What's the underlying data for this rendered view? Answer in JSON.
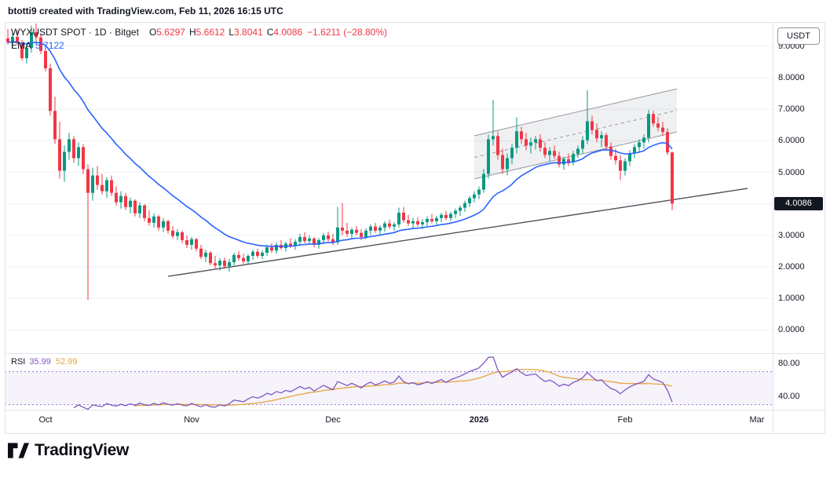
{
  "header": {
    "credit": "btotti9 created with TradingView.com, Feb 11, 2026 16:15 UTC"
  },
  "legend": {
    "symbol_title": "WYXUSDT SPOT · 1D · Bitget",
    "ohlc": {
      "o_label": "O",
      "o_value": "5.6297",
      "h_label": "H",
      "h_value": "5.6612",
      "l_label": "L",
      "l_value": "3.8041",
      "c_label": "C",
      "c_value": "4.0086",
      "change": "−1.6211 (−28.80%)"
    },
    "ema": {
      "label": "EMA",
      "value": "5.7122"
    }
  },
  "price_axis": {
    "currency_button": "USDT",
    "ticks": [
      "9.0000",
      "8.0000",
      "7.0000",
      "6.0000",
      "5.0000",
      "4.0000",
      "3.0000",
      "2.0000",
      "1.0000",
      "0.0000"
    ],
    "last_price_label": "4.0086"
  },
  "rsi_pane": {
    "label": "RSI",
    "rsi_value": "35.99",
    "ma_value": "52.99",
    "axis_ticks": [
      {
        "text": "80.00",
        "value": 80
      },
      {
        "text": "40.00",
        "value": 40
      }
    ]
  },
  "time_axis": {
    "labels": [
      {
        "text": "Oct",
        "index": 8,
        "emphasis": false
      },
      {
        "text": "Nov",
        "index": 39,
        "emphasis": false
      },
      {
        "text": "Dec",
        "index": 69,
        "emphasis": false
      },
      {
        "text": "2026",
        "index": 100,
        "emphasis": true
      },
      {
        "text": "Feb",
        "index": 131,
        "emphasis": false
      },
      {
        "text": "Mar",
        "index": 159,
        "emphasis": false
      }
    ]
  },
  "footer": {
    "logo_text": "TradingView"
  },
  "colors": {
    "up": "#089981",
    "down": "#f23645",
    "ema": "#2962ff",
    "rsi": "#7e57c2",
    "rsi_ma": "#e8a33d",
    "rsi_band_line": "#9b7dd4",
    "rsi_band_fill": "rgba(126,87,194,0.07)",
    "trendline": "#50535e",
    "channel_line": "#9598a1",
    "channel_fill": "rgba(149,152,161,0.15)",
    "grid": "#eef0f4",
    "badge_bg": "#131722"
  },
  "chart_data": {
    "type": "candlestick",
    "symbol": "WYXUSDT",
    "exchange": "Bitget",
    "interval": "1D",
    "ylim": [
      0,
      9.75
    ],
    "y_tick_step": 1.0,
    "candles_ohlc": [
      [
        9.25,
        9.55,
        9.05,
        9.12
      ],
      [
        9.12,
        9.42,
        8.95,
        9.3
      ],
      [
        9.3,
        9.52,
        9.05,
        9.1
      ],
      [
        9.1,
        9.2,
        8.55,
        8.62
      ],
      [
        8.62,
        9.05,
        8.45,
        8.95
      ],
      [
        8.95,
        9.65,
        8.8,
        9.45
      ],
      [
        9.45,
        9.72,
        9.15,
        9.28
      ],
      [
        9.28,
        9.4,
        8.75,
        8.85
      ],
      [
        8.85,
        8.95,
        8.2,
        8.3
      ],
      [
        8.3,
        8.45,
        6.8,
        6.95
      ],
      [
        6.95,
        7.4,
        5.9,
        6.05
      ],
      [
        6.05,
        6.6,
        4.8,
        5.05
      ],
      [
        5.05,
        5.85,
        4.7,
        5.65
      ],
      [
        5.65,
        6.25,
        5.4,
        6.05
      ],
      [
        6.05,
        6.15,
        5.3,
        5.45
      ],
      [
        5.45,
        5.95,
        5.2,
        5.8
      ],
      [
        5.8,
        5.9,
        4.95,
        5.1
      ],
      [
        5.1,
        5.25,
        0.95,
        4.35
      ],
      [
        4.35,
        5.15,
        4.1,
        4.9
      ],
      [
        4.9,
        5.2,
        4.45,
        4.6
      ],
      [
        4.6,
        4.95,
        4.3,
        4.4
      ],
      [
        4.4,
        4.85,
        4.2,
        4.75
      ],
      [
        4.75,
        4.9,
        4.25,
        4.35
      ],
      [
        4.35,
        4.55,
        3.95,
        4.05
      ],
      [
        4.05,
        4.4,
        3.85,
        4.25
      ],
      [
        4.25,
        4.35,
        3.8,
        3.9
      ],
      [
        3.9,
        4.2,
        3.7,
        4.1
      ],
      [
        4.1,
        4.15,
        3.6,
        3.7
      ],
      [
        3.7,
        4.05,
        3.55,
        3.95
      ],
      [
        3.95,
        4.0,
        3.45,
        3.55
      ],
      [
        3.55,
        3.8,
        3.3,
        3.4
      ],
      [
        3.4,
        3.7,
        3.25,
        3.6
      ],
      [
        3.6,
        3.65,
        3.15,
        3.25
      ],
      [
        3.25,
        3.55,
        3.1,
        3.45
      ],
      [
        3.45,
        3.5,
        3.05,
        3.15
      ],
      [
        3.15,
        3.3,
        2.9,
        2.98
      ],
      [
        2.98,
        3.2,
        2.85,
        3.1
      ],
      [
        3.1,
        3.15,
        2.75,
        2.85
      ],
      [
        2.85,
        3.0,
        2.6,
        2.7
      ],
      [
        2.7,
        2.95,
        2.55,
        2.88
      ],
      [
        2.88,
        2.92,
        2.5,
        2.58
      ],
      [
        2.58,
        2.7,
        2.25,
        2.32
      ],
      [
        2.32,
        2.55,
        2.15,
        2.45
      ],
      [
        2.45,
        2.5,
        2.05,
        2.12
      ],
      [
        2.12,
        2.35,
        1.95,
        2.05
      ],
      [
        2.05,
        2.28,
        1.88,
        2.2
      ],
      [
        2.2,
        2.3,
        1.95,
        2.02
      ],
      [
        2.02,
        2.25,
        1.85,
        2.15
      ],
      [
        2.15,
        2.45,
        2.05,
        2.38
      ],
      [
        2.38,
        2.5,
        2.2,
        2.28
      ],
      [
        2.28,
        2.42,
        2.1,
        2.18
      ],
      [
        2.18,
        2.4,
        2.08,
        2.35
      ],
      [
        2.35,
        2.55,
        2.22,
        2.48
      ],
      [
        2.48,
        2.58,
        2.28,
        2.35
      ],
      [
        2.35,
        2.52,
        2.25,
        2.45
      ],
      [
        2.45,
        2.7,
        2.35,
        2.62
      ],
      [
        2.62,
        2.75,
        2.45,
        2.52
      ],
      [
        2.52,
        2.78,
        2.42,
        2.7
      ],
      [
        2.7,
        2.85,
        2.55,
        2.6
      ],
      [
        2.6,
        2.8,
        2.48,
        2.74
      ],
      [
        2.74,
        2.9,
        2.6,
        2.66
      ],
      [
        2.66,
        2.88,
        2.55,
        2.8
      ],
      [
        2.8,
        3.05,
        2.68,
        2.95
      ],
      [
        2.95,
        3.1,
        2.75,
        2.82
      ],
      [
        2.82,
        3.0,
        2.7,
        2.9
      ],
      [
        2.9,
        2.95,
        2.62,
        2.7
      ],
      [
        2.7,
        2.92,
        2.58,
        2.85
      ],
      [
        2.85,
        3.08,
        2.72,
        3.0
      ],
      [
        3.0,
        3.12,
        2.8,
        2.88
      ],
      [
        2.88,
        3.05,
        2.7,
        2.78
      ],
      [
        2.78,
        3.9,
        2.7,
        3.25
      ],
      [
        3.25,
        4.02,
        3.0,
        3.15
      ],
      [
        3.15,
        3.4,
        2.95,
        3.05
      ],
      [
        3.05,
        3.25,
        2.9,
        3.18
      ],
      [
        3.18,
        3.3,
        3.0,
        3.08
      ],
      [
        3.08,
        3.2,
        2.85,
        2.95
      ],
      [
        2.95,
        3.22,
        2.88,
        3.15
      ],
      [
        3.15,
        3.35,
        3.02,
        3.28
      ],
      [
        3.28,
        3.4,
        3.08,
        3.15
      ],
      [
        3.15,
        3.32,
        3.0,
        3.25
      ],
      [
        3.25,
        3.45,
        3.12,
        3.38
      ],
      [
        3.38,
        3.5,
        3.2,
        3.28
      ],
      [
        3.28,
        3.42,
        3.15,
        3.35
      ],
      [
        3.35,
        3.88,
        3.25,
        3.72
      ],
      [
        3.72,
        3.9,
        3.4,
        3.48
      ],
      [
        3.48,
        3.65,
        3.3,
        3.38
      ],
      [
        3.38,
        3.55,
        3.22,
        3.45
      ],
      [
        3.45,
        3.58,
        3.28,
        3.35
      ],
      [
        3.35,
        3.52,
        3.2,
        3.42
      ],
      [
        3.42,
        3.6,
        3.3,
        3.52
      ],
      [
        3.52,
        3.68,
        3.38,
        3.45
      ],
      [
        3.45,
        3.62,
        3.32,
        3.55
      ],
      [
        3.55,
        3.72,
        3.42,
        3.65
      ],
      [
        3.65,
        3.78,
        3.48,
        3.55
      ],
      [
        3.55,
        3.75,
        3.45,
        3.68
      ],
      [
        3.68,
        3.85,
        3.55,
        3.78
      ],
      [
        3.78,
        3.95,
        3.62,
        3.88
      ],
      [
        3.88,
        4.1,
        3.75,
        4.02
      ],
      [
        4.02,
        4.25,
        3.9,
        4.18
      ],
      [
        4.18,
        4.4,
        4.05,
        4.3
      ],
      [
        4.3,
        4.55,
        4.15,
        4.45
      ],
      [
        4.45,
        5.1,
        4.35,
        4.95
      ],
      [
        4.95,
        6.2,
        4.8,
        6.05
      ],
      [
        6.05,
        7.3,
        5.85,
        6.15
      ],
      [
        6.15,
        6.3,
        5.4,
        5.55
      ],
      [
        5.55,
        5.75,
        4.95,
        5.1
      ],
      [
        5.1,
        5.6,
        4.9,
        5.45
      ],
      [
        5.45,
        5.9,
        5.25,
        5.78
      ],
      [
        5.78,
        6.75,
        5.6,
        6.3
      ],
      [
        6.3,
        6.45,
        5.9,
        6.05
      ],
      [
        6.05,
        6.25,
        5.7,
        5.85
      ],
      [
        5.85,
        6.1,
        5.6,
        5.95
      ],
      [
        5.95,
        6.15,
        5.72,
        6.05
      ],
      [
        6.05,
        6.2,
        5.65,
        5.78
      ],
      [
        5.78,
        5.95,
        5.45,
        5.55
      ],
      [
        5.55,
        5.8,
        5.35,
        5.68
      ],
      [
        5.68,
        5.85,
        5.42,
        5.52
      ],
      [
        5.52,
        5.65,
        5.15,
        5.25
      ],
      [
        5.25,
        5.5,
        5.08,
        5.42
      ],
      [
        5.42,
        5.6,
        5.2,
        5.32
      ],
      [
        5.32,
        5.68,
        5.22,
        5.58
      ],
      [
        5.58,
        5.85,
        5.45,
        5.75
      ],
      [
        5.75,
        6.15,
        5.6,
        6.02
      ],
      [
        6.02,
        7.6,
        5.9,
        6.62
      ],
      [
        6.62,
        6.8,
        6.2,
        6.35
      ],
      [
        6.35,
        6.55,
        5.95,
        6.08
      ],
      [
        6.08,
        6.3,
        5.8,
        6.18
      ],
      [
        6.18,
        6.25,
        5.7,
        5.82
      ],
      [
        5.82,
        5.95,
        5.4,
        5.52
      ],
      [
        5.52,
        5.75,
        5.25,
        5.38
      ],
      [
        5.38,
        5.55,
        4.75,
        5.05
      ],
      [
        5.05,
        5.45,
        4.9,
        5.35
      ],
      [
        5.35,
        5.7,
        5.2,
        5.6
      ],
      [
        5.6,
        5.9,
        5.45,
        5.8
      ],
      [
        5.8,
        6.05,
        5.62,
        5.95
      ],
      [
        5.95,
        6.2,
        5.75,
        6.1
      ],
      [
        6.1,
        6.98,
        5.95,
        6.85
      ],
      [
        6.85,
        6.95,
        6.45,
        6.55
      ],
      [
        6.55,
        6.75,
        6.3,
        6.42
      ],
      [
        6.42,
        6.6,
        6.15,
        6.28
      ],
      [
        6.28,
        6.4,
        5.55,
        5.63
      ],
      [
        5.6297,
        5.6612,
        3.8041,
        4.0086
      ]
    ],
    "overlays": {
      "ema": {
        "period": 21,
        "last_value": 5.7122
      },
      "trendline": {
        "start_index": 34,
        "price_start": 1.7,
        "end_index": 157,
        "price_end": 4.49
      },
      "channel": {
        "start_index": 99,
        "end_index": 142,
        "top_start": 6.16,
        "top_end": 7.65,
        "bottom_start": 4.79,
        "bottom_end": 6.28
      }
    },
    "rsi": {
      "period": 14,
      "ma_period": 14,
      "upper_band": 70,
      "lower_band": 30,
      "last_rsi": 35.99,
      "last_ma": 52.99
    }
  }
}
